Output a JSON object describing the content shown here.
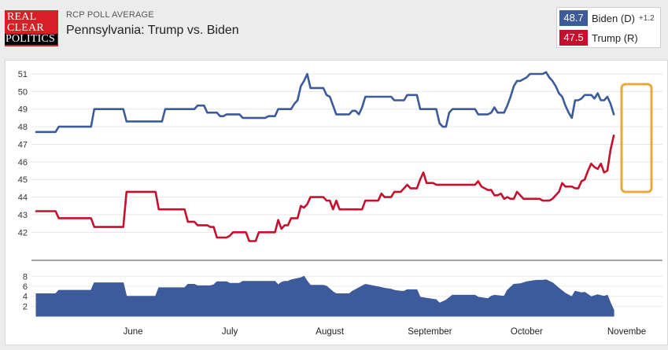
{
  "header": {
    "logo_lines": [
      "REAL",
      "CLEAR",
      "POLITICS"
    ],
    "kicker": "RCP POLL AVERAGE",
    "title": "Pennsylvania: Trump vs. Biden"
  },
  "legend": [
    {
      "value": "48.7",
      "name": "Biden (D)",
      "spread": "+1.2",
      "color": "#3d5a9a"
    },
    {
      "value": "47.5",
      "name": "Trump (R)",
      "spread": "",
      "color": "#c4102e"
    }
  ],
  "colors": {
    "biden": "#3d5a9a",
    "trump": "#c4102e",
    "highlight": "#e8a93a",
    "area": "#3d5a9a"
  },
  "chart_data": [
    {
      "type": "line",
      "title": "Pennsylvania: Trump vs. Biden",
      "ylim": [
        41.3,
        51.4
      ],
      "yticks": [
        42,
        43,
        44,
        45,
        46,
        47,
        48,
        49,
        50,
        51
      ],
      "xlim": [
        0,
        188
      ],
      "xticks": [
        {
          "label": "June",
          "x": 30
        },
        {
          "label": "July",
          "x": 60
        },
        {
          "label": "August",
          "x": 91
        },
        {
          "label": "September",
          "x": 122
        },
        {
          "label": "October",
          "x": 152
        },
        {
          "label": "Novembe",
          "x": 183
        }
      ],
      "grid": true,
      "series": [
        {
          "name": "Biden (D)",
          "points": [
            [
              0,
              47.7
            ],
            [
              6,
              47.7
            ],
            [
              7,
              48.0
            ],
            [
              17,
              48.0
            ],
            [
              18,
              49.0
            ],
            [
              27,
              49.0
            ],
            [
              28,
              48.3
            ],
            [
              39,
              48.3
            ],
            [
              40,
              49.0
            ],
            [
              49,
              49.0
            ],
            [
              50,
              49.2
            ],
            [
              52,
              49.2
            ],
            [
              53,
              48.8
            ],
            [
              56,
              48.8
            ],
            [
              57,
              48.6
            ],
            [
              58,
              48.6
            ],
            [
              59,
              48.7
            ],
            [
              63,
              48.7
            ],
            [
              64,
              48.5
            ],
            [
              71,
              48.5
            ],
            [
              72,
              48.6
            ],
            [
              74,
              48.6
            ],
            [
              75,
              49.0
            ],
            [
              79,
              49.0
            ],
            [
              80,
              49.3
            ],
            [
              81,
              49.5
            ],
            [
              82,
              50.3
            ],
            [
              83,
              50.6
            ],
            [
              84,
              51.0
            ],
            [
              85,
              50.2
            ],
            [
              89,
              50.2
            ],
            [
              90,
              49.8
            ],
            [
              91,
              49.7
            ],
            [
              92,
              49.2
            ],
            [
              93,
              48.7
            ],
            [
              97,
              48.7
            ],
            [
              98,
              48.9
            ],
            [
              99,
              48.9
            ],
            [
              100,
              48.7
            ],
            [
              101,
              49.1
            ],
            [
              102,
              49.7
            ],
            [
              110,
              49.7
            ],
            [
              111,
              49.5
            ],
            [
              114,
              49.5
            ],
            [
              115,
              49.8
            ],
            [
              118,
              49.8
            ],
            [
              119,
              49.0
            ],
            [
              124,
              49.0
            ],
            [
              125,
              48.2
            ],
            [
              126,
              48.0
            ],
            [
              127,
              48.0
            ],
            [
              128,
              48.8
            ],
            [
              129,
              49.0
            ],
            [
              136,
              49.0
            ],
            [
              137,
              48.7
            ],
            [
              140,
              48.7
            ],
            [
              141,
              48.8
            ],
            [
              142,
              49.1
            ],
            [
              143,
              48.8
            ],
            [
              145,
              48.8
            ],
            [
              146,
              49.2
            ],
            [
              147,
              49.7
            ],
            [
              148,
              50.3
            ],
            [
              149,
              50.6
            ],
            [
              150,
              50.6
            ],
            [
              151,
              50.7
            ],
            [
              152,
              50.8
            ],
            [
              153,
              51.0
            ],
            [
              157,
              51.0
            ],
            [
              158,
              51.1
            ],
            [
              159,
              50.8
            ],
            [
              160,
              50.6
            ],
            [
              161,
              50.3
            ],
            [
              162,
              49.9
            ],
            [
              163,
              49.7
            ],
            [
              164,
              49.2
            ],
            [
              165,
              48.8
            ],
            [
              166,
              48.5
            ],
            [
              167,
              49.5
            ],
            [
              168,
              49.5
            ],
            [
              169,
              49.6
            ],
            [
              170,
              49.8
            ],
            [
              172,
              49.8
            ],
            [
              173,
              49.6
            ],
            [
              174,
              49.9
            ],
            [
              175,
              49.5
            ],
            [
              176,
              49.5
            ],
            [
              177,
              49.7
            ],
            [
              178,
              49.3
            ],
            [
              179,
              48.7
            ]
          ]
        },
        {
          "name": "Trump (R)",
          "points": [
            [
              0,
              43.2
            ],
            [
              6,
              43.2
            ],
            [
              7,
              42.8
            ],
            [
              17,
              42.8
            ],
            [
              18,
              42.3
            ],
            [
              27,
              42.3
            ],
            [
              28,
              44.3
            ],
            [
              37,
              44.3
            ],
            [
              38,
              43.3
            ],
            [
              46,
              43.3
            ],
            [
              47,
              42.6
            ],
            [
              49,
              42.6
            ],
            [
              50,
              42.4
            ],
            [
              53,
              42.4
            ],
            [
              54,
              42.3
            ],
            [
              55,
              42.3
            ],
            [
              56,
              41.7
            ],
            [
              59,
              41.7
            ],
            [
              60,
              41.8
            ],
            [
              61,
              42.0
            ],
            [
              65,
              42.0
            ],
            [
              66,
              41.5
            ],
            [
              68,
              41.5
            ],
            [
              69,
              42.0
            ],
            [
              74,
              42.0
            ],
            [
              75,
              42.7
            ],
            [
              76,
              42.2
            ],
            [
              77,
              42.4
            ],
            [
              78,
              42.4
            ],
            [
              79,
              42.8
            ],
            [
              81,
              42.8
            ],
            [
              82,
              43.5
            ],
            [
              83,
              43.4
            ],
            [
              84,
              43.6
            ],
            [
              85,
              44.0
            ],
            [
              89,
              44.0
            ],
            [
              90,
              43.8
            ],
            [
              91,
              43.8
            ],
            [
              92,
              43.3
            ],
            [
              93,
              43.8
            ],
            [
              94,
              43.3
            ],
            [
              101,
              43.3
            ],
            [
              102,
              43.8
            ],
            [
              106,
              43.8
            ],
            [
              107,
              44.2
            ],
            [
              108,
              44.0
            ],
            [
              110,
              44.0
            ],
            [
              111,
              44.3
            ],
            [
              113,
              44.3
            ],
            [
              114,
              44.5
            ],
            [
              115,
              44.7
            ],
            [
              116,
              44.5
            ],
            [
              118,
              44.5
            ],
            [
              119,
              45.0
            ],
            [
              120,
              45.4
            ],
            [
              121,
              44.8
            ],
            [
              123,
              44.8
            ],
            [
              124,
              44.7
            ],
            [
              136,
              44.7
            ],
            [
              137,
              44.9
            ],
            [
              138,
              44.6
            ],
            [
              139,
              44.5
            ],
            [
              140,
              44.4
            ],
            [
              141,
              44.4
            ],
            [
              142,
              44.1
            ],
            [
              143,
              44.1
            ],
            [
              144,
              44.2
            ],
            [
              145,
              43.9
            ],
            [
              146,
              44.0
            ],
            [
              147,
              43.9
            ],
            [
              148,
              43.9
            ],
            [
              149,
              44.3
            ],
            [
              150,
              44.1
            ],
            [
              151,
              43.9
            ],
            [
              156,
              43.9
            ],
            [
              157,
              43.8
            ],
            [
              159,
              43.8
            ],
            [
              160,
              43.9
            ],
            [
              161,
              44.1
            ],
            [
              162,
              44.3
            ],
            [
              163,
              44.8
            ],
            [
              164,
              44.6
            ],
            [
              166,
              44.6
            ],
            [
              167,
              44.5
            ],
            [
              168,
              44.5
            ],
            [
              169,
              44.9
            ],
            [
              170,
              45.0
            ],
            [
              171,
              45.5
            ],
            [
              172,
              45.9
            ],
            [
              173,
              45.7
            ],
            [
              174,
              45.6
            ],
            [
              175,
              45.9
            ],
            [
              176,
              45.4
            ],
            [
              177,
              45.5
            ],
            [
              178,
              46.7
            ],
            [
              179,
              47.5
            ]
          ]
        }
      ]
    },
    {
      "type": "area",
      "ylim": [
        0,
        9
      ],
      "yticks": [
        2,
        4,
        6,
        8
      ],
      "xlim": [
        0,
        188
      ],
      "series": [
        {
          "name": "Spread",
          "points": [
            [
              0,
              4.5
            ],
            [
              6,
              4.5
            ],
            [
              7,
              5.2
            ],
            [
              17,
              5.2
            ],
            [
              18,
              6.7
            ],
            [
              27,
              6.7
            ],
            [
              28,
              4.0
            ],
            [
              37,
              4.0
            ],
            [
              38,
              5.7
            ],
            [
              46,
              5.7
            ],
            [
              47,
              6.4
            ],
            [
              49,
              6.4
            ],
            [
              50,
              6.1
            ],
            [
              54,
              6.1
            ],
            [
              55,
              6.3
            ],
            [
              56,
              6.9
            ],
            [
              59,
              6.9
            ],
            [
              60,
              6.6
            ],
            [
              63,
              6.6
            ],
            [
              64,
              7.0
            ],
            [
              70,
              7.0
            ],
            [
              71,
              7.0
            ],
            [
              74,
              7.0
            ],
            [
              75,
              6.3
            ],
            [
              76,
              6.8
            ],
            [
              77,
              7.0
            ],
            [
              78,
              7.0
            ],
            [
              79,
              7.3
            ],
            [
              82,
              7.7
            ],
            [
              83,
              8.0
            ],
            [
              84,
              7.0
            ],
            [
              85,
              6.2
            ],
            [
              89,
              6.2
            ],
            [
              90,
              6.0
            ],
            [
              92,
              4.9
            ],
            [
              93,
              4.5
            ],
            [
              97,
              4.5
            ],
            [
              98,
              5.0
            ],
            [
              102,
              6.4
            ],
            [
              106,
              5.9
            ],
            [
              108,
              5.6
            ],
            [
              110,
              5.4
            ],
            [
              111,
              5.2
            ],
            [
              113,
              5.0
            ],
            [
              114,
              5.0
            ],
            [
              115,
              5.3
            ],
            [
              118,
              5.3
            ],
            [
              119,
              3.8
            ],
            [
              124,
              3.3
            ],
            [
              125,
              2.6
            ],
            [
              127,
              3.2
            ],
            [
              129,
              4.2
            ],
            [
              136,
              4.2
            ],
            [
              137,
              3.8
            ],
            [
              140,
              3.5
            ],
            [
              141,
              4.0
            ],
            [
              142,
              4.2
            ],
            [
              145,
              4.0
            ],
            [
              146,
              5.2
            ],
            [
              148,
              6.4
            ],
            [
              150,
              6.5
            ],
            [
              152,
              6.9
            ],
            [
              155,
              7.2
            ],
            [
              157,
              7.2
            ],
            [
              158,
              7.3
            ],
            [
              160,
              6.7
            ],
            [
              162,
              5.6
            ],
            [
              164,
              4.6
            ],
            [
              166,
              3.9
            ],
            [
              167,
              5.0
            ],
            [
              169,
              4.7
            ],
            [
              170,
              4.8
            ],
            [
              172,
              3.9
            ],
            [
              173,
              4.1
            ],
            [
              174,
              4.3
            ],
            [
              176,
              4.0
            ],
            [
              177,
              4.2
            ],
            [
              178,
              2.6
            ],
            [
              179,
              1.2
            ]
          ]
        }
      ]
    }
  ]
}
